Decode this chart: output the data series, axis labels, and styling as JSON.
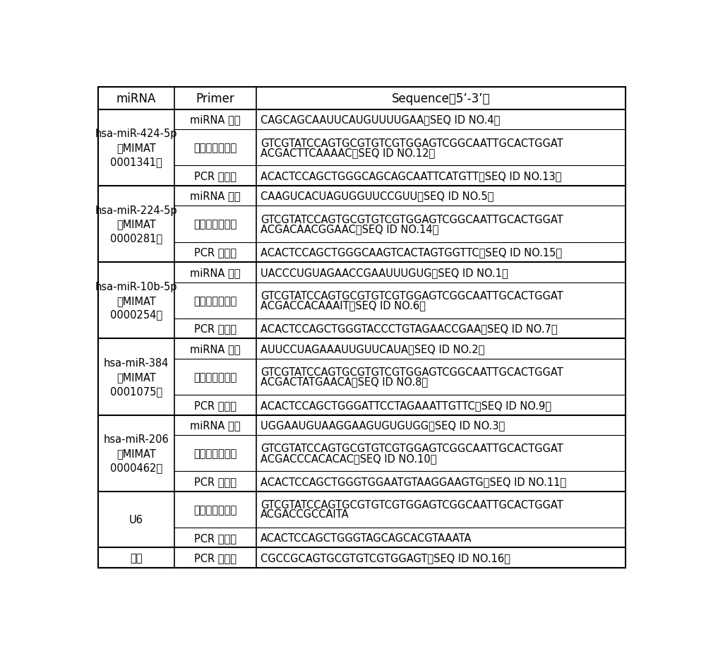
{
  "header": [
    "miRNA",
    "Primer",
    "Sequence（5’-3’）"
  ],
  "bg_color": "#ffffff",
  "text_color": "#000000",
  "header_fontsize": 12,
  "cell_fontsize": 10.5,
  "rows": [
    {
      "mirna": "hsa-miR-424-5p\n（MIMAT\n0001341）",
      "entries": [
        [
          "miRNA 序列",
          "CAGCAGCAAUUCAUGUUUUGAA（SEQ ID NO.4）"
        ],
        [
          "反转录引物序列",
          "GTCGTATCCAGTGCGTGTCGTGGAGTCGGCAATTGCACTGGAT\nACGACTTCAAAAC（SEQ ID NO.12）"
        ],
        [
          "PCR 前引物",
          "ACACTCCAGCTGGGCAGCAGCAATTCATGTT（SEQ ID NO.13）"
        ]
      ]
    },
    {
      "mirna": "hsa-miR-224-5p\n（MIMAT\n0000281）",
      "entries": [
        [
          "miRNA 序列",
          "CAAGUCACUAGUGGUUCCGUU（SEQ ID NO.5）"
        ],
        [
          "反转录引物序列",
          "GTCGTATCCAGTGCGTGTCGTGGAGTCGGCAATTGCACTGGAT\nACGACAACGGAAC（SEQ ID NO.14）"
        ],
        [
          "PCR 前引物",
          "ACACTCCAGCTGGGCAAGTCACTAGTGGTTC（SEQ ID NO.15）"
        ]
      ]
    },
    {
      "mirna": "hsa-miR-10b-5p\n（MIMAT\n0000254）",
      "entries": [
        [
          "miRNA 序列",
          "UACCCUGUAGAACCGAAUUUGUG（SEQ ID NO.1）"
        ],
        [
          "反转录引物序列",
          "GTCGTATCCAGTGCGTGTCGTGGAGTCGGCAATTGCACTGGAT\nACGACCACAAAIT（SEQ ID NO.6）"
        ],
        [
          "PCR 前引物",
          "ACACTCCAGCTGGGTACCCTGTAGAACCGAA（SEQ ID NO.7）"
        ]
      ]
    },
    {
      "mirna": "hsa-miR-384\n（MIMAT\n0001075）",
      "entries": [
        [
          "miRNA 序列",
          "AUUCCUAGAAAUUGUUCAUA（SEQ ID NO.2）"
        ],
        [
          "反转录引物序列",
          "GTCGTATCCAGTGCGTGTCGTGGAGTCGGCAATTGCACTGGAT\nACGACTATGAACA（SEQ ID NO.8）"
        ],
        [
          "PCR 前引物",
          "ACACTCCAGCTGGGATTCCTAGAAATTGTTC（SEQ ID NO.9）"
        ]
      ]
    },
    {
      "mirna": "hsa-miR-206\n（MIMAT\n0000462）",
      "entries": [
        [
          "miRNA 序列",
          "UGGAAUGUAAGGAAGUGUGUGG（SEQ ID NO.3）"
        ],
        [
          "反转录引物序列",
          "GTCGTATCCAGTGCGTGTCGTGGAGTCGGCAATTGCACTGGAT\nACGACCCACACAC（SEQ ID NO.10）"
        ],
        [
          "PCR 前引物",
          "ACACTCCAGCTGGGTGGAATGTAAGGAAGTG（SEQ ID NO.11）"
        ]
      ]
    },
    {
      "mirna": "U6",
      "entries": [
        [
          "反转录引物序列",
          "GTCGTATCCAGTGCGTGTCGTGGAGTCGGCAATTGCACTGGAT\nACGACCGCCAITA"
        ],
        [
          "PCR 前引物",
          "ACACTCCAGCTGGGTAGCAGCACGTAAATA"
        ]
      ]
    },
    {
      "mirna": "通用",
      "entries": [
        [
          "PCR 后引物",
          "CGCCGCAGTGCGTGTCGTGGAGT（SEQ ID NO.16）"
        ]
      ]
    }
  ]
}
